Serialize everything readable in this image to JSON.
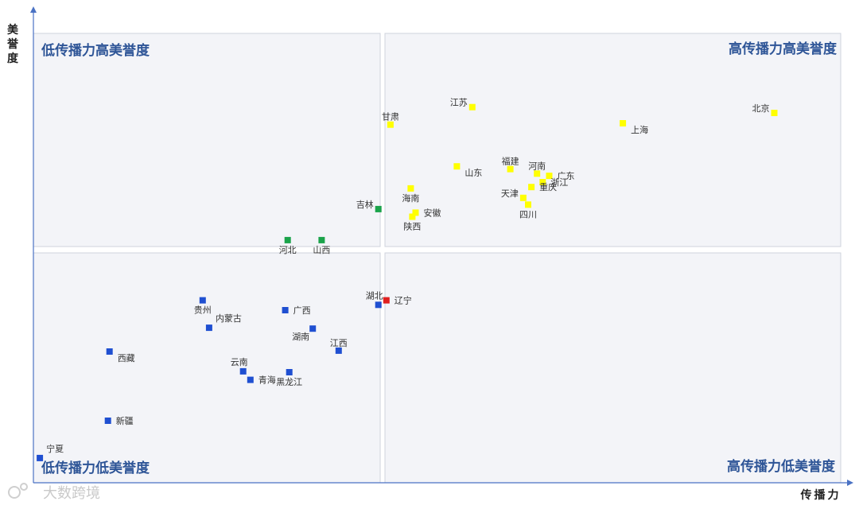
{
  "chart_data": {
    "type": "scatter",
    "xlabel": "传播力",
    "ylabel": "美誉度",
    "xlim": [
      0,
      100
    ],
    "ylim": [
      0,
      100
    ],
    "grid": false,
    "quadrants": {
      "top_left": "低传播力高美誉度",
      "top_right": "高传播力高美誉度",
      "bottom_left": "低传播力低美誉度",
      "bottom_right": "高传播力低美誉度"
    },
    "colors": {
      "yellow": "#ffff00",
      "green": "#1aa34a",
      "blue": "#1f4fd1",
      "red": "#e0201f",
      "quadrant_bg": "#f3f4f8",
      "quadrant_border": "#cfd3dc",
      "quadrant_title": "#2e5597",
      "axis": "#4a72c4"
    },
    "points": [
      {
        "name": "北京",
        "x": 91.5,
        "y": 82.3,
        "group": "yellow",
        "label_pos": "left"
      },
      {
        "name": "上海",
        "x": 72.8,
        "y": 80.0,
        "group": "yellow",
        "label_pos": "below-right"
      },
      {
        "name": "江苏",
        "x": 54.2,
        "y": 83.6,
        "group": "yellow",
        "label_pos": "left"
      },
      {
        "name": "甘肃",
        "x": 44.1,
        "y": 79.7,
        "group": "yellow",
        "label_pos": "above"
      },
      {
        "name": "山东",
        "x": 52.3,
        "y": 70.4,
        "group": "yellow",
        "label_pos": "below-right"
      },
      {
        "name": "福建",
        "x": 58.9,
        "y": 69.8,
        "group": "yellow",
        "label_pos": "above"
      },
      {
        "name": "河南",
        "x": 62.2,
        "y": 68.8,
        "group": "yellow",
        "label_pos": "above"
      },
      {
        "name": "广东",
        "x": 63.7,
        "y": 68.3,
        "group": "yellow",
        "label_pos": "right"
      },
      {
        "name": "浙江",
        "x": 62.9,
        "y": 66.9,
        "group": "yellow",
        "label_pos": "right"
      },
      {
        "name": "重庆",
        "x": 61.5,
        "y": 65.8,
        "group": "yellow",
        "label_pos": "right"
      },
      {
        "name": "天津",
        "x": 60.5,
        "y": 63.4,
        "group": "yellow",
        "label_pos": "left"
      },
      {
        "name": "四川",
        "x": 61.1,
        "y": 61.9,
        "group": "yellow",
        "label_pos": "below"
      },
      {
        "name": "海南",
        "x": 46.6,
        "y": 65.5,
        "group": "yellow",
        "label_pos": "below"
      },
      {
        "name": "安徽",
        "x": 47.2,
        "y": 60.1,
        "group": "yellow",
        "label_pos": "right"
      },
      {
        "name": "陕西",
        "x": 46.8,
        "y": 59.2,
        "group": "yellow",
        "label_pos": "below"
      },
      {
        "name": "吉林",
        "x": 42.6,
        "y": 60.9,
        "group": "green",
        "label_pos": "left"
      },
      {
        "name": "河北",
        "x": 31.4,
        "y": 54.0,
        "group": "green",
        "label_pos": "below"
      },
      {
        "name": "山西",
        "x": 35.6,
        "y": 54.0,
        "group": "green",
        "label_pos": "below"
      },
      {
        "name": "辽宁",
        "x": 43.6,
        "y": 40.6,
        "group": "red",
        "label_pos": "right"
      },
      {
        "name": "湖北",
        "x": 42.6,
        "y": 39.6,
        "group": "blue",
        "label_pos": "above-left"
      },
      {
        "name": "贵州",
        "x": 20.9,
        "y": 40.6,
        "group": "blue",
        "label_pos": "below"
      },
      {
        "name": "内蒙古",
        "x": 21.7,
        "y": 34.5,
        "group": "blue",
        "label_pos": "above-right"
      },
      {
        "name": "广西",
        "x": 31.1,
        "y": 38.4,
        "group": "blue",
        "label_pos": "right"
      },
      {
        "name": "湖南",
        "x": 34.5,
        "y": 34.3,
        "group": "blue",
        "label_pos": "below-left"
      },
      {
        "name": "江西",
        "x": 37.7,
        "y": 29.4,
        "group": "blue",
        "label_pos": "above"
      },
      {
        "name": "西藏",
        "x": 9.4,
        "y": 29.2,
        "group": "blue",
        "label_pos": "below-right"
      },
      {
        "name": "云南",
        "x": 25.9,
        "y": 24.8,
        "group": "blue",
        "label_pos": "above-left"
      },
      {
        "name": "青海",
        "x": 26.8,
        "y": 22.9,
        "group": "blue",
        "label_pos": "right"
      },
      {
        "name": "黑龙江",
        "x": 31.6,
        "y": 24.6,
        "group": "blue",
        "label_pos": "below"
      },
      {
        "name": "新疆",
        "x": 9.2,
        "y": 13.8,
        "group": "blue",
        "label_pos": "right"
      },
      {
        "name": "宁夏",
        "x": 0.8,
        "y": 5.5,
        "group": "blue",
        "label_pos": "above-right"
      }
    ]
  },
  "watermark": "大数跨境"
}
